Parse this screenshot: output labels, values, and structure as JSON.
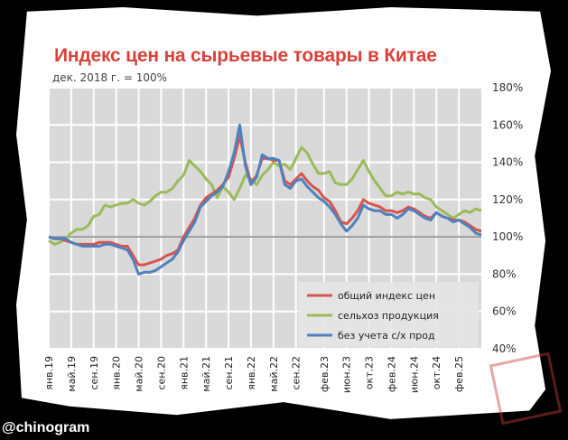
{
  "watermark": "@chinogram",
  "chart_data": {
    "type": "line",
    "title": "Индекс цен на сырьевые товары в Китае",
    "subtitle": "дек. 2018 г. = 100%",
    "ylim": [
      40,
      180
    ],
    "yticks": [
      "40%",
      "60%",
      "80%",
      "100%",
      "120%",
      "140%",
      "160%",
      "180%"
    ],
    "ytick_values": [
      40,
      60,
      80,
      100,
      120,
      140,
      160,
      180
    ],
    "reference_line": 100,
    "grid": true,
    "legend_position": "bottom-right",
    "x_start": "2019-01",
    "x_count": 78,
    "xticks": [
      {
        "label": "янв.19",
        "index": 0
      },
      {
        "label": "май.19",
        "index": 4
      },
      {
        "label": "сен.19",
        "index": 8
      },
      {
        "label": "янв.20",
        "index": 12
      },
      {
        "label": "май.20",
        "index": 16
      },
      {
        "label": "сен.20",
        "index": 20
      },
      {
        "label": "янв.21",
        "index": 24
      },
      {
        "label": "май.21",
        "index": 28
      },
      {
        "label": "сен.21",
        "index": 32
      },
      {
        "label": "янв.22",
        "index": 36
      },
      {
        "label": "май.22",
        "index": 40
      },
      {
        "label": "сен.22",
        "index": 44
      },
      {
        "label": "фев.23",
        "index": 49
      },
      {
        "label": "июн.23",
        "index": 53
      },
      {
        "label": "окт.23",
        "index": 57
      },
      {
        "label": "фев.24",
        "index": 61
      },
      {
        "label": "июн.24",
        "index": 65
      },
      {
        "label": "окт.24",
        "index": 69
      },
      {
        "label": "фев.25",
        "index": 73
      }
    ],
    "series": [
      {
        "name": "общий индекс цен",
        "color": "#d9534f",
        "values": [
          100,
          99,
          99,
          98,
          97,
          96,
          96,
          96,
          96,
          97,
          97,
          97,
          96,
          95,
          95,
          90,
          85,
          85,
          86,
          87,
          88,
          90,
          91,
          93,
          100,
          105,
          110,
          117,
          121,
          123,
          125,
          128,
          132,
          142,
          154,
          140,
          129,
          133,
          142,
          142,
          141,
          141,
          130,
          128,
          131,
          134,
          130,
          127,
          125,
          121,
          119,
          114,
          108,
          107,
          110,
          114,
          120,
          118,
          117,
          116,
          114,
          114,
          113,
          114,
          116,
          115,
          113,
          111,
          110,
          113,
          111,
          110,
          109,
          109,
          108,
          106,
          104,
          103
        ]
      },
      {
        "name": "сельхоз продукция",
        "color": "#9bbb59",
        "values": [
          98,
          96,
          97,
          99,
          102,
          104,
          104,
          106,
          111,
          112,
          117,
          116,
          117,
          118,
          118,
          120,
          118,
          117,
          119,
          122,
          124,
          124,
          126,
          130,
          133,
          141,
          138,
          135,
          131,
          128,
          121,
          127,
          124,
          120,
          126,
          133,
          131,
          128,
          133,
          136,
          140,
          138,
          139,
          136,
          142,
          148,
          145,
          139,
          134,
          134,
          135,
          129,
          128,
          128,
          131,
          136,
          141,
          135,
          130,
          126,
          122,
          122,
          124,
          123,
          124,
          123,
          123,
          121,
          120,
          116,
          114,
          112,
          110,
          112,
          114,
          113,
          115,
          114
        ]
      },
      {
        "name": "без учета с/х прод",
        "color": "#4f81bd",
        "values": [
          100,
          99,
          99,
          99,
          97,
          96,
          95,
          95,
          95,
          95,
          96,
          96,
          95,
          94,
          93,
          88,
          80,
          81,
          81,
          82,
          84,
          86,
          88,
          92,
          98,
          103,
          108,
          116,
          119,
          122,
          124,
          127,
          135,
          145,
          160,
          138,
          128,
          132,
          144,
          142,
          142,
          141,
          128,
          126,
          130,
          131,
          127,
          124,
          121,
          119,
          116,
          112,
          107,
          103,
          106,
          110,
          117,
          115,
          114,
          114,
          112,
          112,
          110,
          112,
          115,
          114,
          112,
          110,
          109,
          113,
          111,
          110,
          108,
          109,
          107,
          105,
          102,
          101
        ]
      }
    ]
  }
}
